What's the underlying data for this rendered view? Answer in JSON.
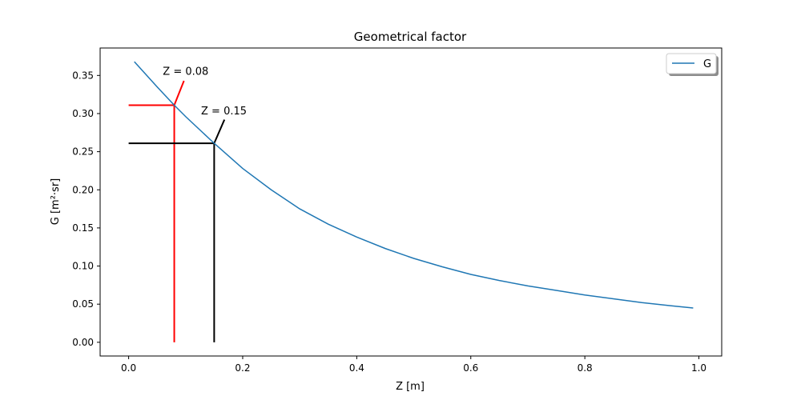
{
  "chart_data": {
    "type": "line",
    "title": "Geometrical factor",
    "xlabel": "Z [m]",
    "ylabel": "G [m²·sr]",
    "xlim": [
      -0.05,
      1.04
    ],
    "ylim": [
      -0.018,
      0.386
    ],
    "xticks": [
      "0.0",
      "0.2",
      "0.4",
      "0.6",
      "0.8",
      "1.0"
    ],
    "yticks": [
      "0.00",
      "0.05",
      "0.10",
      "0.15",
      "0.20",
      "0.25",
      "0.30",
      "0.35"
    ],
    "grid": false,
    "legend": {
      "position": "top-right",
      "entries": [
        "G"
      ]
    },
    "colors": {
      "series": "#1f77b4",
      "first_marker": "#ff0000",
      "second_marker": "#000000"
    },
    "series": [
      {
        "name": "G",
        "x": [
          0.01,
          0.05,
          0.08,
          0.1,
          0.15,
          0.2,
          0.25,
          0.3,
          0.35,
          0.4,
          0.45,
          0.5,
          0.55,
          0.6,
          0.65,
          0.7,
          0.75,
          0.8,
          0.85,
          0.9,
          0.95,
          0.99
        ],
        "y": [
          0.368,
          0.335,
          0.311,
          0.296,
          0.261,
          0.228,
          0.2,
          0.175,
          0.155,
          0.138,
          0.123,
          0.11,
          0.099,
          0.089,
          0.081,
          0.074,
          0.068,
          0.062,
          0.057,
          0.052,
          0.048,
          0.045
        ]
      }
    ],
    "markers": [
      {
        "x": 0.08,
        "y": 0.311,
        "label": "Z = 0.08",
        "label_x": 0.06,
        "label_y": 0.351,
        "pointer_end_x": 0.097,
        "pointer_end_y": 0.343,
        "color": "#ff0000"
      },
      {
        "x": 0.15,
        "y": 0.261,
        "label": "Z = 0.15",
        "label_x": 0.127,
        "label_y": 0.299,
        "pointer_end_x": 0.168,
        "pointer_end_y": 0.292,
        "color": "#000000"
      }
    ]
  }
}
